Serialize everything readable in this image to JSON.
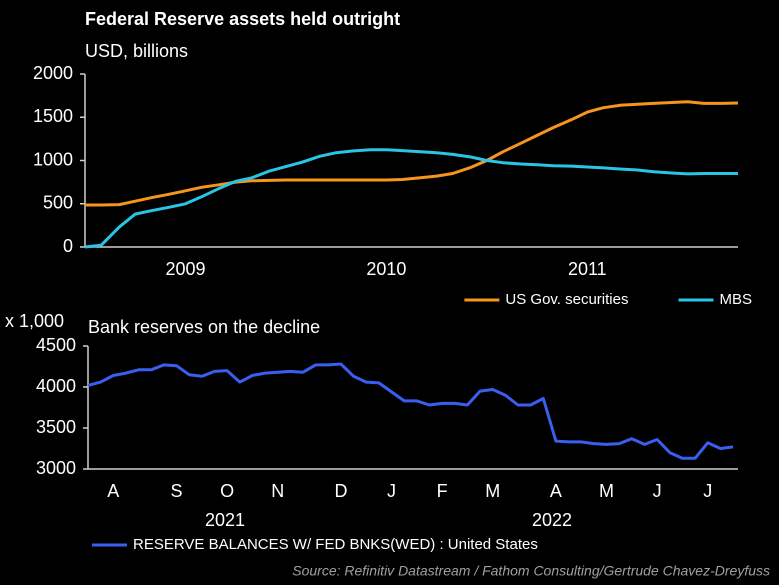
{
  "chart_data": [
    {
      "type": "line",
      "title": "Federal Reserve assets held outright",
      "subtitle": "USD, billions",
      "x": [
        2009,
        2009.08,
        2009.17,
        2009.25,
        2009.33,
        2009.42,
        2009.5,
        2009.58,
        2009.67,
        2009.75,
        2009.83,
        2009.92,
        2010,
        2010.08,
        2010.17,
        2010.25,
        2010.33,
        2010.42,
        2010.5,
        2010.58,
        2010.67,
        2010.75,
        2010.83,
        2010.92,
        2011,
        2011.08,
        2011.17,
        2011.25,
        2011.33,
        2011.42,
        2011.5,
        2011.58,
        2011.67,
        2011.75,
        2011.83,
        2011.92,
        2012,
        2012.08,
        2012.17,
        2012.25
      ],
      "series": [
        {
          "name": "US Gov. securities",
          "color": "#f7941d",
          "values": [
            485,
            485,
            490,
            530,
            570,
            610,
            650,
            690,
            720,
            750,
            765,
            770,
            775,
            775,
            775,
            775,
            775,
            775,
            775,
            780,
            800,
            820,
            850,
            920,
            1000,
            1100,
            1200,
            1290,
            1380,
            1470,
            1560,
            1610,
            1640,
            1650,
            1660,
            1670,
            1680,
            1660,
            1660,
            1665
          ]
        },
        {
          "name": "MBS",
          "color": "#29c5e6",
          "values": [
            0,
            20,
            230,
            380,
            420,
            460,
            500,
            580,
            680,
            760,
            800,
            880,
            930,
            980,
            1050,
            1090,
            1110,
            1125,
            1125,
            1115,
            1100,
            1090,
            1070,
            1040,
            1000,
            975,
            960,
            950,
            940,
            935,
            925,
            915,
            900,
            890,
            870,
            855,
            845,
            850,
            850,
            850
          ]
        }
      ],
      "xlim": [
        2009,
        2012.25
      ],
      "xticks": [
        {
          "value": 2009.5,
          "label": "2009"
        },
        {
          "value": 2010.5,
          "label": "2010"
        },
        {
          "value": 2011.5,
          "label": "2011"
        }
      ],
      "ylim": [
        0,
        2000
      ],
      "yticks": [
        0,
        500,
        1000,
        1500,
        2000
      ],
      "grid": false,
      "legend": "lower right"
    },
    {
      "type": "line",
      "title": "Bank reserves on the decline",
      "y_axis_label": "x 1,000",
      "categories": [
        null,
        null,
        "A",
        null,
        null,
        null,
        null,
        "S",
        null,
        null,
        null,
        "O",
        null,
        null,
        null,
        "N",
        null,
        null,
        null,
        null,
        "D",
        null,
        null,
        null,
        "J",
        null,
        null,
        null,
        "F",
        null,
        null,
        null,
        "M",
        null,
        null,
        null,
        null,
        "A",
        null,
        null,
        null,
        "M",
        null,
        null,
        null,
        "J",
        null,
        null,
        null,
        "J",
        null,
        null
      ],
      "year_labels": [
        "2021",
        "2022"
      ],
      "series": [
        {
          "name": "RESERVE BALANCES W/ FED BNKS(WED) : United States",
          "color": "#3a5ef0",
          "values": [
            4020,
            4060,
            4140,
            4170,
            4210,
            4210,
            4270,
            4260,
            4150,
            4130,
            4190,
            4200,
            4060,
            4140,
            4170,
            4180,
            4190,
            4180,
            4270,
            4270,
            4280,
            4130,
            4060,
            4050,
            3940,
            3830,
            3830,
            3780,
            3800,
            3800,
            3780,
            3950,
            3970,
            3900,
            3780,
            3780,
            3860,
            3340,
            3330,
            3330,
            3310,
            3300,
            3310,
            3370,
            3300,
            3360,
            3200,
            3130,
            3130,
            3320,
            3250,
            3270
          ]
        }
      ],
      "ylim": [
        3000,
        4500
      ],
      "yticks": [
        3000,
        3500,
        4000,
        4500
      ],
      "grid": false,
      "legend": "lower left"
    }
  ],
  "source": "Source: Refinitiv Datastream / Fathom Consulting/Gertrude Chavez-Dreyfuss"
}
